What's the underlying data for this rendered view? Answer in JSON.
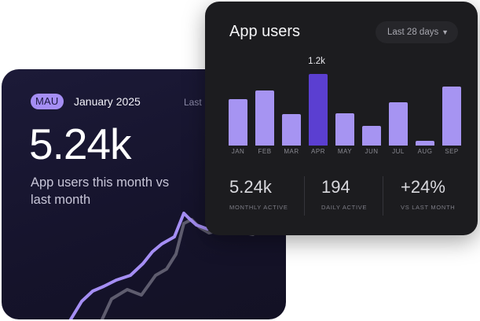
{
  "mau_card": {
    "badge": "MAU",
    "month": "January 2025",
    "last_label": "Last",
    "value": "5.24k",
    "description": "App users this month vs last month"
  },
  "app_card": {
    "title": "App users",
    "range": {
      "selected": "Last 28 days",
      "icon": "chevron-down-icon"
    },
    "peak_label": "1.2k",
    "stats": [
      {
        "value": "5.24k",
        "label": "MONTHLY ACTIVE"
      },
      {
        "value": "194",
        "label": "DAILY ACTIVE"
      },
      {
        "value": "+24%",
        "label": "VS LAST MONTH"
      }
    ]
  },
  "chart_data": {
    "type": "bar",
    "title": "App users",
    "categories": [
      "JAN",
      "FEB",
      "MAR",
      "APR",
      "MAY",
      "JUN",
      "JUL",
      "AUG",
      "SEP"
    ],
    "values": [
      780,
      920,
      530,
      1200,
      540,
      330,
      730,
      80,
      990
    ],
    "highlighted_category": "APR",
    "ylim": [
      0,
      1200
    ]
  },
  "colors": {
    "bar": "#a694f2",
    "bar_active": "#5b3fd1",
    "accent": "#a58ef4",
    "sparkline_primary": "#a58ef4",
    "sparkline_secondary": "#5e5c6e"
  }
}
